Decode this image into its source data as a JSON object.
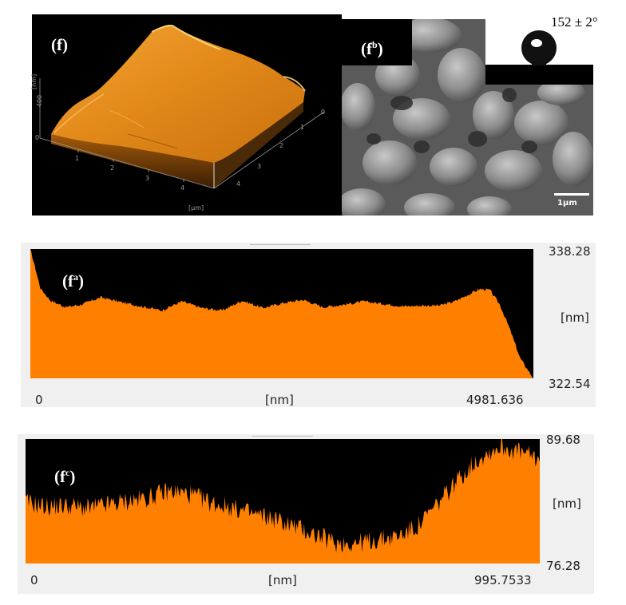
{
  "panel_f": {
    "label": "(f)",
    "z_axis_unit": "[nm]",
    "z_ticks": [
      "400",
      "0"
    ],
    "x_ticks": [
      "1",
      "2",
      "3",
      "4"
    ],
    "y_ticks": [
      "0",
      "1",
      "2",
      "3",
      "4"
    ],
    "x_unit": "[µm]"
  },
  "panel_fb": {
    "label_main": "(f",
    "label_sup": "b",
    "label_close": ")",
    "contact_angle": "152 ± 2°",
    "scale_bar": "1µm"
  },
  "profile_fa": {
    "label_main": "(f",
    "label_sup": "a",
    "label_close": ")",
    "y_max": "338.28",
    "y_min": "322.54",
    "y_unit": "[nm]",
    "x_start": "0",
    "x_unit": "[nm]",
    "x_end": "4981.636"
  },
  "profile_fc": {
    "label_main": "(f",
    "label_sup": "c",
    "label_close": ")",
    "y_max": "89.68",
    "y_min": "76.28",
    "y_unit": "[nm]",
    "x_start": "0",
    "x_unit": "[nm]",
    "x_end": "995.7533"
  },
  "chart_data": [
    {
      "type": "area",
      "label": "(fa)",
      "x_range": [
        0,
        4981.636
      ],
      "ylim": [
        322.54,
        338.28
      ],
      "xlabel": "[nm]",
      "ylabel": "[nm]",
      "x": [
        0,
        100,
        200,
        350,
        500,
        700,
        900,
        1100,
        1300,
        1500,
        1700,
        1900,
        2100,
        2300,
        2500,
        2700,
        2900,
        3100,
        3300,
        3500,
        3700,
        3900,
        4050,
        4200,
        4350,
        4450,
        4550,
        4650,
        4750,
        4850,
        4981.636
      ],
      "y": [
        338.28,
        333.5,
        332.0,
        331.2,
        331.5,
        332.4,
        331.8,
        331.3,
        330.8,
        331.9,
        331.1,
        330.8,
        332.0,
        331.1,
        331.7,
        332.1,
        331.2,
        331.5,
        331.9,
        331.6,
        331.3,
        331.4,
        331.4,
        331.9,
        332.8,
        333.4,
        333.3,
        331.5,
        328.5,
        325.0,
        322.54
      ]
    },
    {
      "type": "area",
      "label": "(fc)",
      "x_range": [
        0,
        995.7533
      ],
      "ylim": [
        76.28,
        89.68
      ],
      "xlabel": "[nm]",
      "ylabel": "[nm]",
      "x": [
        0,
        40,
        80,
        120,
        160,
        200,
        240,
        280,
        320,
        360,
        400,
        440,
        480,
        520,
        560,
        600,
        640,
        680,
        720,
        760,
        800,
        840,
        880,
        920,
        960,
        995.7533
      ],
      "y": [
        82.9,
        82.4,
        82.5,
        82.2,
        82.6,
        83.0,
        83.4,
        84.1,
        83.7,
        82.8,
        82.3,
        81.6,
        81.1,
        80.3,
        79.4,
        78.5,
        78.5,
        78.8,
        79.2,
        80.3,
        82.8,
        85.5,
        87.7,
        88.9,
        88.2,
        87.5
      ]
    }
  ]
}
